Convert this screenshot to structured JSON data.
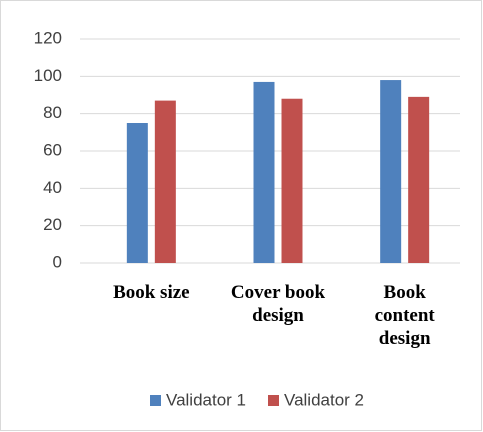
{
  "chart_data": {
    "type": "bar",
    "categories": [
      "Book size",
      "Cover book design",
      "Book content design"
    ],
    "series": [
      {
        "name": "Validator 1",
        "color": "#4f81bd",
        "values": [
          75,
          97,
          98
        ]
      },
      {
        "name": "Validator 2",
        "color": "#c0504d",
        "values": [
          87,
          88,
          89
        ]
      }
    ],
    "ylim": [
      0,
      120
    ],
    "yticks": [
      0,
      20,
      40,
      60,
      80,
      100,
      120
    ],
    "grid": true,
    "legend": "bottom"
  }
}
